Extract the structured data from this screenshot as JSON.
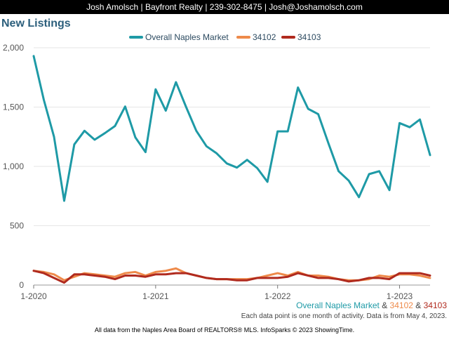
{
  "header": {
    "text": "Josh Amolsch | Bayfront Realty | 239-302-8475 | Josh@Joshamolsch.com"
  },
  "footer": {
    "amp": "&",
    "activity_note": "Each data point is one month of activity. Data is from May 4, 2023.",
    "credit": "All data from the Naples Area Board of REALTORS® MLS. InfoSparks © 2023 ShowingTime."
  },
  "colors": {
    "overall": "#1e9aa6",
    "z34102": "#ee8a4a",
    "z34103": "#b02a1e",
    "title": "#2c5f7c",
    "grid": "#e6e6e6"
  },
  "chart_data": {
    "type": "line",
    "title": "New Listings",
    "legend_position": "top",
    "grid": true,
    "ylim": [
      0,
      2000
    ],
    "yticks": [
      0,
      500,
      1000,
      1500,
      2000
    ],
    "ytick_labels": [
      "0",
      "500",
      "1,000",
      "1,500",
      "2,000"
    ],
    "xticks": [
      {
        "month": "1-2020",
        "index": 0
      },
      {
        "month": "1-2021",
        "index": 12
      },
      {
        "month": "1-2022",
        "index": 24
      },
      {
        "month": "1-2023",
        "index": 36
      }
    ],
    "months": [
      "1-2020",
      "2-2020",
      "3-2020",
      "4-2020",
      "5-2020",
      "6-2020",
      "7-2020",
      "8-2020",
      "9-2020",
      "10-2020",
      "11-2020",
      "12-2020",
      "1-2021",
      "2-2021",
      "3-2021",
      "4-2021",
      "5-2021",
      "6-2021",
      "7-2021",
      "8-2021",
      "9-2021",
      "10-2021",
      "11-2021",
      "12-2021",
      "1-2022",
      "2-2022",
      "3-2022",
      "4-2022",
      "5-2022",
      "6-2022",
      "7-2022",
      "8-2022",
      "9-2022",
      "10-2022",
      "11-2022",
      "12-2022",
      "1-2023",
      "2-2023",
      "3-2023",
      "4-2023"
    ],
    "series": [
      {
        "name": "Overall Naples Market",
        "values": [
          1930,
          1560,
          1250,
          710,
          1185,
          1300,
          1225,
          1280,
          1340,
          1505,
          1245,
          1120,
          1650,
          1470,
          1710,
          1500,
          1300,
          1170,
          1110,
          1025,
          990,
          1055,
          985,
          870,
          1295,
          1295,
          1665,
          1485,
          1440,
          1195,
          960,
          880,
          740,
          935,
          960,
          800,
          1365,
          1330,
          1395,
          1095
        ]
      },
      {
        "name": "34102",
        "values": [
          120,
          110,
          90,
          40,
          70,
          100,
          90,
          80,
          70,
          100,
          110,
          80,
          110,
          120,
          140,
          100,
          80,
          60,
          50,
          50,
          50,
          50,
          60,
          80,
          100,
          80,
          110,
          80,
          80,
          70,
          50,
          40,
          40,
          50,
          80,
          70,
          90,
          90,
          80,
          60
        ]
      },
      {
        "name": "34103",
        "values": [
          120,
          100,
          60,
          20,
          90,
          90,
          80,
          70,
          50,
          80,
          80,
          70,
          90,
          90,
          100,
          100,
          80,
          60,
          50,
          50,
          40,
          40,
          60,
          60,
          60,
          70,
          100,
          80,
          60,
          60,
          50,
          30,
          40,
          60,
          60,
          50,
          100,
          100,
          100,
          80
        ]
      }
    ]
  }
}
